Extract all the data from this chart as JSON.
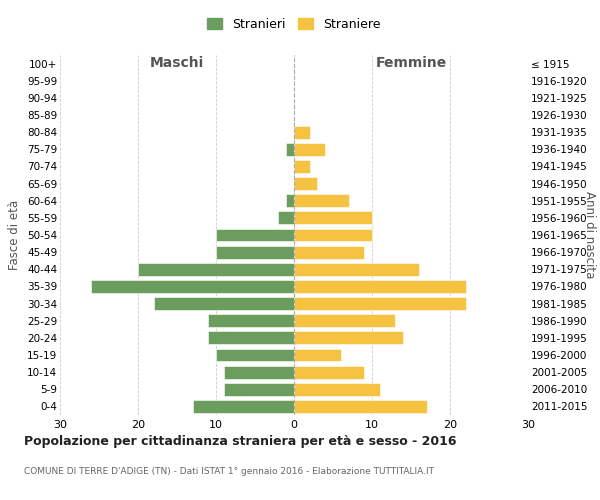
{
  "age_groups": [
    "100+",
    "95-99",
    "90-94",
    "85-89",
    "80-84",
    "75-79",
    "70-74",
    "65-69",
    "60-64",
    "55-59",
    "50-54",
    "45-49",
    "40-44",
    "35-39",
    "30-34",
    "25-29",
    "20-24",
    "15-19",
    "10-14",
    "5-9",
    "0-4"
  ],
  "birth_years": [
    "≤ 1915",
    "1916-1920",
    "1921-1925",
    "1926-1930",
    "1931-1935",
    "1936-1940",
    "1941-1945",
    "1946-1950",
    "1951-1955",
    "1956-1960",
    "1961-1965",
    "1966-1970",
    "1971-1975",
    "1976-1980",
    "1981-1985",
    "1986-1990",
    "1991-1995",
    "1996-2000",
    "2001-2005",
    "2006-2010",
    "2011-2015"
  ],
  "maschi": [
    0,
    0,
    0,
    0,
    0,
    1,
    0,
    0,
    1,
    2,
    10,
    10,
    20,
    26,
    18,
    11,
    11,
    10,
    9,
    9,
    13
  ],
  "femmine": [
    0,
    0,
    0,
    0,
    2,
    4,
    2,
    3,
    7,
    10,
    10,
    9,
    16,
    22,
    22,
    13,
    14,
    6,
    9,
    11,
    17
  ],
  "maschi_color": "#6b9e5e",
  "femmine_color": "#f5c242",
  "background_color": "#ffffff",
  "grid_color": "#cccccc",
  "title": "Popolazione per cittadinanza straniera per età e sesso - 2016",
  "subtitle": "COMUNE DI TERRE D'ADIGE (TN) - Dati ISTAT 1° gennaio 2016 - Elaborazione TUTTITALIA.IT",
  "xlabel_left": "Maschi",
  "xlabel_right": "Femmine",
  "ylabel_left": "Fasce di età",
  "ylabel_right": "Anni di nascita",
  "legend_stranieri": "Stranieri",
  "legend_straniere": "Straniere",
  "xlim": 30
}
